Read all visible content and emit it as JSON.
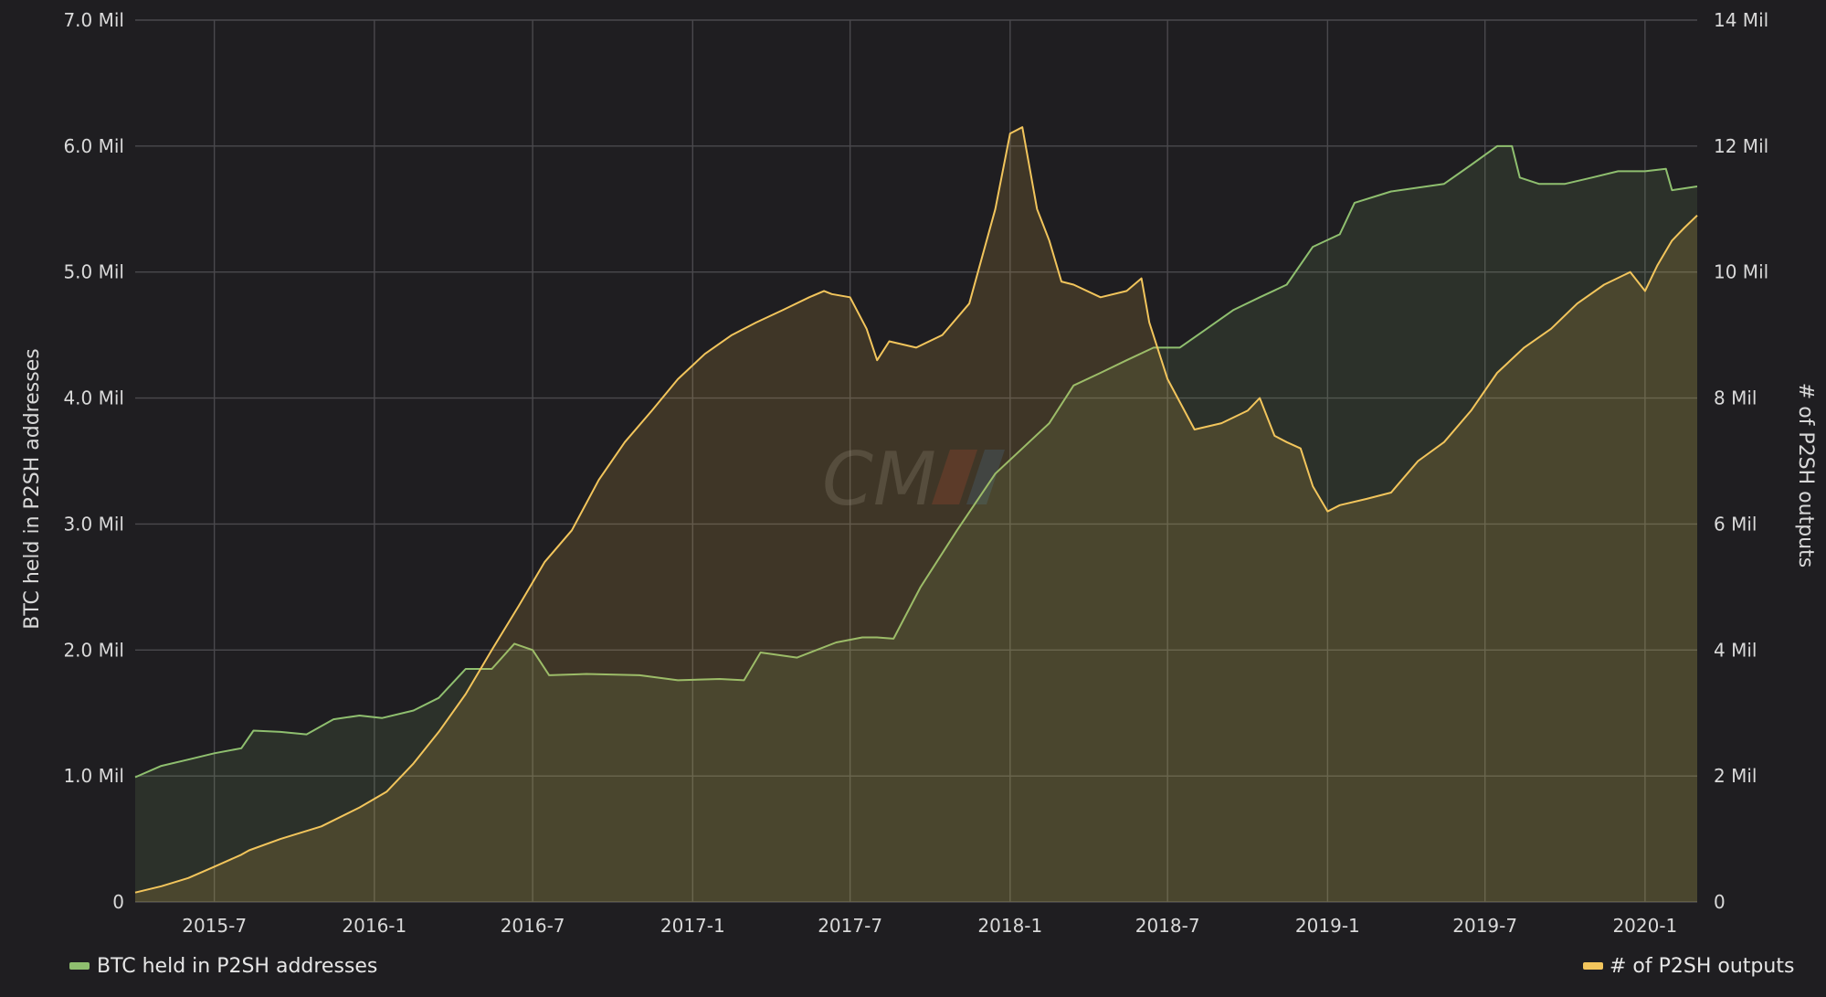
{
  "chart_data": {
    "type": "line",
    "title": "",
    "x_ticks": [
      "2015-7",
      "2016-1",
      "2016-7",
      "2017-1",
      "2017-7",
      "2018-1",
      "2018-7",
      "2019-1",
      "2019-7",
      "2020-1"
    ],
    "x_range": [
      "2015-04",
      "2020-03"
    ],
    "y_left": {
      "label": "BTC held in P2SH addresses",
      "range": [
        0,
        7000000
      ],
      "ticks": [
        "0",
        "1.0 Mil",
        "2.0 Mil",
        "3.0 Mil",
        "4.0 Mil",
        "5.0 Mil",
        "6.0 Mil",
        "7.0 Mil"
      ]
    },
    "y_right": {
      "label": "# of P2SH outputs",
      "range": [
        0,
        14000000
      ],
      "ticks": [
        "0",
        "2 Mil",
        "4 Mil",
        "6 Mil",
        "8 Mil",
        "10 Mil",
        "12 Mil",
        "14 Mil"
      ]
    },
    "grid": true,
    "legend": [
      {
        "label": "BTC held in P2SH addresses",
        "color": "#8fbf6f",
        "position": "bottom-left"
      },
      {
        "label": "# of P2SH outputs",
        "color": "#f2c55c",
        "position": "bottom-right"
      }
    ],
    "series": [
      {
        "name": "BTC held in P2SH addresses",
        "axis": "left",
        "color": "#8fbf6f",
        "points": [
          [
            "2015-04-01",
            990000
          ],
          [
            "2015-05-01",
            1080000
          ],
          [
            "2015-06-01",
            1130000
          ],
          [
            "2015-07-01",
            1180000
          ],
          [
            "2015-08-01",
            1220000
          ],
          [
            "2015-08-15",
            1360000
          ],
          [
            "2015-09-15",
            1350000
          ],
          [
            "2015-10-15",
            1330000
          ],
          [
            "2015-11-15",
            1450000
          ],
          [
            "2015-12-15",
            1480000
          ],
          [
            "2016-01-10",
            1460000
          ],
          [
            "2016-02-15",
            1520000
          ],
          [
            "2016-03-15",
            1620000
          ],
          [
            "2016-04-15",
            1850000
          ],
          [
            "2016-05-15",
            1850000
          ],
          [
            "2016-06-10",
            2050000
          ],
          [
            "2016-07-01",
            2000000
          ],
          [
            "2016-07-20",
            1800000
          ],
          [
            "2016-09-01",
            1810000
          ],
          [
            "2016-11-01",
            1800000
          ],
          [
            "2016-12-15",
            1760000
          ],
          [
            "2017-02-01",
            1770000
          ],
          [
            "2017-03-01",
            1760000
          ],
          [
            "2017-03-20",
            1980000
          ],
          [
            "2017-05-01",
            1940000
          ],
          [
            "2017-06-15",
            2060000
          ],
          [
            "2017-07-15",
            2100000
          ],
          [
            "2017-08-01",
            2100000
          ],
          [
            "2017-08-20",
            2090000
          ],
          [
            "2017-09-20",
            2500000
          ],
          [
            "2017-11-01",
            2950000
          ],
          [
            "2017-12-15",
            3400000
          ],
          [
            "2018-01-15",
            3600000
          ],
          [
            "2018-02-15",
            3800000
          ],
          [
            "2018-03-15",
            4100000
          ],
          [
            "2018-04-15",
            4200000
          ],
          [
            "2018-05-15",
            4300000
          ],
          [
            "2018-06-15",
            4400000
          ],
          [
            "2018-07-15",
            4400000
          ],
          [
            "2018-08-15",
            4550000
          ],
          [
            "2018-09-15",
            4700000
          ],
          [
            "2018-10-15",
            4800000
          ],
          [
            "2018-11-15",
            4900000
          ],
          [
            "2018-12-15",
            5200000
          ],
          [
            "2019-01-15",
            5300000
          ],
          [
            "2019-02-01",
            5550000
          ],
          [
            "2019-03-15",
            5640000
          ],
          [
            "2019-05-15",
            5700000
          ],
          [
            "2019-06-15",
            5850000
          ],
          [
            "2019-07-15",
            6000000
          ],
          [
            "2019-08-01",
            6000000
          ],
          [
            "2019-08-10",
            5750000
          ],
          [
            "2019-09-01",
            5700000
          ],
          [
            "2019-10-01",
            5700000
          ],
          [
            "2019-11-01",
            5750000
          ],
          [
            "2019-12-01",
            5800000
          ],
          [
            "2020-01-01",
            5800000
          ],
          [
            "2020-01-25",
            5820000
          ],
          [
            "2020-02-01",
            5650000
          ],
          [
            "2020-03-01",
            5680000
          ]
        ]
      },
      {
        "name": "# of P2SH outputs",
        "axis": "right",
        "color": "#f2c55c",
        "points": [
          [
            "2015-04-01",
            150000
          ],
          [
            "2015-05-01",
            250000
          ],
          [
            "2015-06-01",
            380000
          ],
          [
            "2015-07-01",
            560000
          ],
          [
            "2015-08-01",
            750000
          ],
          [
            "2015-08-10",
            820000
          ],
          [
            "2015-09-15",
            1000000
          ],
          [
            "2015-11-01",
            1200000
          ],
          [
            "2015-12-15",
            1500000
          ],
          [
            "2016-01-15",
            1750000
          ],
          [
            "2016-02-15",
            2200000
          ],
          [
            "2016-03-15",
            2700000
          ],
          [
            "2016-04-15",
            3300000
          ],
          [
            "2016-05-15",
            4000000
          ],
          [
            "2016-06-15",
            4700000
          ],
          [
            "2016-07-15",
            5400000
          ],
          [
            "2016-08-15",
            5900000
          ],
          [
            "2016-09-15",
            6700000
          ],
          [
            "2016-10-15",
            7300000
          ],
          [
            "2016-11-15",
            7800000
          ],
          [
            "2016-12-15",
            8300000
          ],
          [
            "2017-01-15",
            8700000
          ],
          [
            "2017-02-15",
            9000000
          ],
          [
            "2017-03-15",
            9200000
          ],
          [
            "2017-04-15",
            9400000
          ],
          [
            "2017-05-15",
            9600000
          ],
          [
            "2017-06-01",
            9700000
          ],
          [
            "2017-06-10",
            9650000
          ],
          [
            "2017-07-01",
            9600000
          ],
          [
            "2017-07-20",
            9100000
          ],
          [
            "2017-08-01",
            8600000
          ],
          [
            "2017-08-15",
            8900000
          ],
          [
            "2017-09-15",
            8800000
          ],
          [
            "2017-10-15",
            9000000
          ],
          [
            "2017-11-15",
            9500000
          ],
          [
            "2017-12-15",
            11000000
          ],
          [
            "2018-01-01",
            12200000
          ],
          [
            "2018-01-15",
            12300000
          ],
          [
            "2018-02-01",
            11000000
          ],
          [
            "2018-02-15",
            10500000
          ],
          [
            "2018-03-01",
            9850000
          ],
          [
            "2018-03-15",
            9800000
          ],
          [
            "2018-04-15",
            9600000
          ],
          [
            "2018-05-15",
            9700000
          ],
          [
            "2018-06-01",
            9900000
          ],
          [
            "2018-06-10",
            9200000
          ],
          [
            "2018-07-01",
            8300000
          ],
          [
            "2018-08-01",
            7500000
          ],
          [
            "2018-09-01",
            7600000
          ],
          [
            "2018-10-01",
            7800000
          ],
          [
            "2018-10-15",
            8000000
          ],
          [
            "2018-11-01",
            7400000
          ],
          [
            "2018-11-15",
            7300000
          ],
          [
            "2018-12-01",
            7200000
          ],
          [
            "2018-12-15",
            6600000
          ],
          [
            "2019-01-01",
            6200000
          ],
          [
            "2019-01-15",
            6300000
          ],
          [
            "2019-02-15",
            6400000
          ],
          [
            "2019-03-15",
            6500000
          ],
          [
            "2019-04-15",
            7000000
          ],
          [
            "2019-05-15",
            7300000
          ],
          [
            "2019-06-15",
            7800000
          ],
          [
            "2019-07-15",
            8400000
          ],
          [
            "2019-08-15",
            8800000
          ],
          [
            "2019-09-15",
            9100000
          ],
          [
            "2019-10-15",
            9500000
          ],
          [
            "2019-11-15",
            9800000
          ],
          [
            "2019-12-15",
            10000000
          ],
          [
            "2020-01-01",
            9700000
          ],
          [
            "2020-01-15",
            10100000
          ],
          [
            "2020-02-01",
            10500000
          ],
          [
            "2020-02-15",
            10700000
          ],
          [
            "2020-03-01",
            10900000
          ]
        ]
      }
    ]
  }
}
